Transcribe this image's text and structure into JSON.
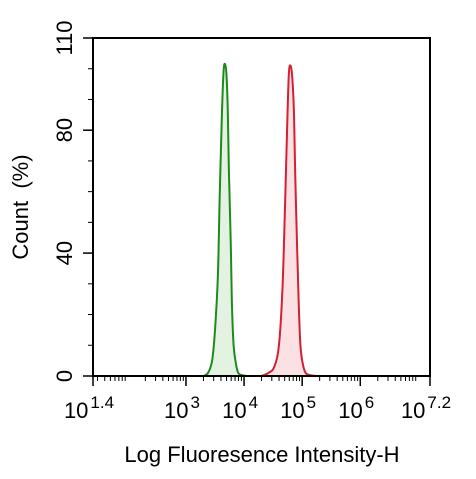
{
  "chart_data": {
    "type": "area",
    "xlabel": "Log Fluoresence Intensity-H",
    "ylabel": "Count  (%)",
    "x_scale": "log10",
    "xlim": [
      1.4,
      7.2
    ],
    "ylim": [
      0,
      110
    ],
    "x_ticks": [
      {
        "exponent": 1.4,
        "base": "10",
        "power": "1.4"
      },
      {
        "exponent": 3,
        "base": "10",
        "power": "3"
      },
      {
        "exponent": 4,
        "base": "10",
        "power": "4"
      },
      {
        "exponent": 5,
        "base": "10",
        "power": "5"
      },
      {
        "exponent": 6,
        "base": "10",
        "power": "6"
      },
      {
        "exponent": 7.2,
        "base": "10",
        "power": "7.2"
      }
    ],
    "y_ticks": [
      {
        "value": 0,
        "label": "0"
      },
      {
        "value": 40,
        "label": "40"
      },
      {
        "value": 80,
        "label": "80"
      },
      {
        "value": 110,
        "label": "110"
      }
    ],
    "grid": false,
    "legend": "none",
    "series": [
      {
        "color": "#1e8a1e",
        "fill": "#e3f2e1",
        "x": [
          3.3,
          3.38,
          3.45,
          3.5,
          3.55,
          3.58,
          3.62,
          3.65,
          3.68,
          3.7,
          3.72,
          3.74,
          3.77,
          3.79,
          3.82,
          3.86,
          3.9,
          3.96,
          4.05
        ],
        "y": [
          0,
          1,
          5,
          15,
          33,
          58,
          86,
          100,
          101,
          97,
          86,
          66,
          44,
          24,
          10,
          4,
          1,
          0.3,
          0
        ]
      },
      {
        "color": "#d42030",
        "fill": "#fbe1e4",
        "x": [
          4.3,
          4.42,
          4.52,
          4.6,
          4.66,
          4.7,
          4.74,
          4.77,
          4.8,
          4.83,
          4.86,
          4.88,
          4.91,
          4.94,
          4.97,
          5.01,
          5.06,
          5.13,
          5.25
        ],
        "y": [
          0,
          1,
          3,
          10,
          28,
          52,
          80,
          98,
          101,
          97,
          85,
          66,
          44,
          24,
          10,
          4,
          1,
          0.3,
          0
        ]
      }
    ]
  }
}
